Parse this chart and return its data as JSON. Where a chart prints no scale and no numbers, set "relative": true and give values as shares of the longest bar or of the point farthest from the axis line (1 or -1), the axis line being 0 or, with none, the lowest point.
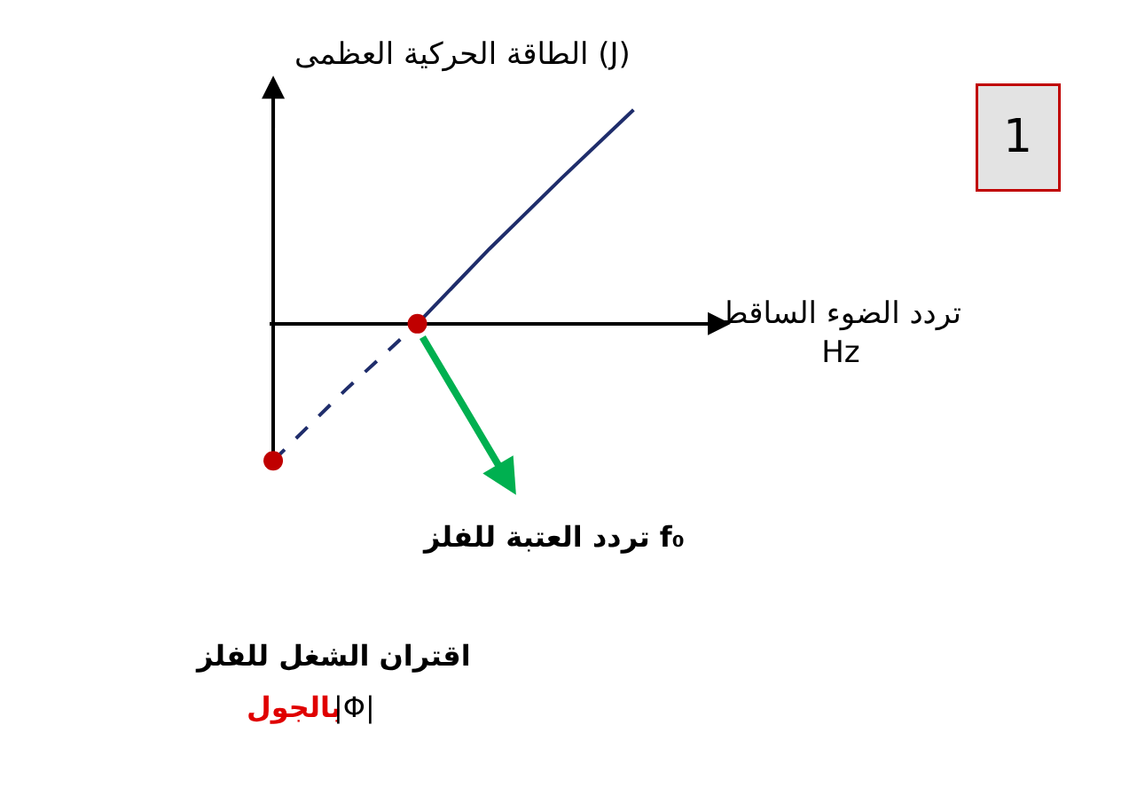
{
  "chart_data": {
    "type": "line",
    "relative": true,
    "ylabel": "الطاقة الحركية العظمى (J)",
    "xlabel": "تردد الضوء الساقط\nHz",
    "categories": [
      null,
      null,
      null,
      null,
      null,
      null
    ],
    "series": [
      {
        "color": "#1f2d6b",
        "line_style": "dashed",
        "marker": "circle",
        "colors": [
          "#c00000",
          null,
          "#c00000",
          null,
          null,
          null
        ],
        "values": [
          -0.64,
          -0.31,
          0,
          null,
          null,
          null
        ]
      },
      {
        "color": "#1f2d6b",
        "line_style": "solid",
        "marker": "none",
        "values": [
          null,
          null,
          0,
          0.35,
          0.68,
          1
        ]
      }
    ],
    "annotations": [
      "تردد العتبة للفلز f₀",
      "اقتران الشغل للفلز",
      "بالجول",
      "|Φ|",
      "1"
    ],
    "legend": false
  }
}
